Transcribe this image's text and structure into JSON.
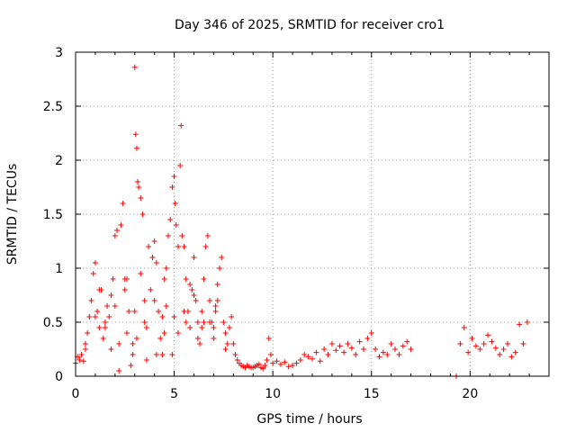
{
  "chart_data": {
    "type": "scatter",
    "title": "Day 346 of 2025, SRMTID for receiver cro1",
    "xlabel": "GPS time / hours",
    "ylabel": "SRMTID / TECUs",
    "xlim": [
      0,
      24
    ],
    "ylim": [
      0,
      3
    ],
    "xticks": [
      0,
      5,
      10,
      15,
      20
    ],
    "yticks": [
      0,
      0.5,
      1,
      1.5,
      2,
      2.5,
      3
    ],
    "xtick_labels": [
      "0",
      "5",
      "10",
      "15",
      "20"
    ],
    "ytick_labels": [
      "0",
      "0.5",
      "1",
      "1.5",
      "2",
      "2.5",
      "3"
    ],
    "grid": true,
    "marker": "plus",
    "series": [
      {
        "name": "SRMTID",
        "color": "#ff0000",
        "x": [
          0.0,
          0.1,
          0.2,
          0.3,
          0.4,
          0.5,
          0.6,
          0.7,
          0.8,
          0.9,
          1.0,
          1.1,
          1.2,
          1.3,
          1.4,
          1.5,
          1.6,
          1.7,
          1.8,
          1.9,
          2.0,
          2.1,
          2.2,
          2.3,
          2.4,
          2.5,
          2.6,
          2.7,
          2.8,
          2.9,
          3.0,
          3.05,
          3.1,
          3.15,
          3.2,
          3.3,
          3.4,
          3.5,
          3.6,
          3.7,
          3.8,
          3.9,
          4.0,
          4.1,
          4.2,
          4.3,
          4.4,
          4.5,
          4.6,
          4.7,
          4.8,
          4.9,
          5.0,
          5.05,
          5.1,
          5.2,
          5.3,
          5.35,
          5.4,
          5.5,
          5.6,
          5.7,
          5.8,
          5.9,
          6.0,
          6.1,
          6.2,
          6.3,
          6.4,
          6.5,
          6.6,
          6.7,
          6.8,
          6.9,
          7.0,
          7.1,
          7.2,
          7.3,
          7.4,
          7.5,
          7.6,
          7.7,
          7.8,
          7.9,
          8.0,
          8.1,
          8.2,
          8.3,
          8.4,
          8.5,
          8.6,
          8.7,
          8.8,
          8.9,
          9.0,
          9.1,
          9.2,
          9.3,
          9.4,
          9.5,
          9.6,
          9.7,
          9.8,
          9.9,
          10.0,
          10.2,
          10.4,
          10.6,
          10.8,
          11.0,
          11.2,
          11.4,
          11.6,
          11.8,
          12.0,
          12.2,
          12.4,
          12.6,
          12.8,
          13.0,
          13.2,
          13.4,
          13.6,
          13.8,
          14.0,
          14.2,
          14.4,
          14.6,
          14.8,
          15.0,
          15.2,
          15.4,
          15.6,
          15.8,
          16.0,
          16.2,
          16.4,
          16.6,
          16.8,
          17.0,
          19.3,
          19.5,
          19.7,
          19.9,
          20.1,
          20.3,
          20.5,
          20.7,
          20.9,
          21.1,
          21.3,
          21.5,
          21.7,
          21.9,
          22.1,
          22.3,
          22.5,
          22.7,
          22.9,
          0.5,
          1.0,
          1.5,
          2.0,
          2.5,
          3.0,
          3.5,
          4.0,
          4.5,
          5.0,
          5.5,
          6.0,
          6.5,
          7.0,
          2.2,
          2.6,
          3.1,
          3.3,
          4.1,
          4.6,
          5.2,
          5.6,
          6.2,
          6.8,
          7.2,
          1.2,
          1.8,
          2.9,
          3.6,
          4.4,
          4.9,
          5.8,
          6.4,
          7.1,
          7.6
        ],
        "y": [
          0.12,
          0.18,
          0.15,
          0.2,
          0.14,
          0.25,
          0.4,
          0.55,
          0.7,
          0.95,
          1.05,
          0.6,
          0.45,
          0.8,
          0.35,
          0.5,
          0.65,
          0.55,
          0.75,
          0.9,
          1.3,
          1.35,
          0.05,
          1.4,
          1.6,
          0.9,
          0.4,
          0.6,
          0.1,
          0.2,
          2.86,
          2.24,
          2.11,
          1.8,
          1.75,
          1.65,
          1.5,
          0.7,
          0.45,
          1.2,
          0.8,
          1.1,
          1.25,
          1.05,
          0.6,
          0.35,
          0.2,
          0.9,
          1.0,
          1.3,
          1.45,
          1.75,
          1.85,
          1.6,
          1.4,
          1.2,
          1.95,
          2.32,
          1.3,
          1.2,
          0.9,
          0.6,
          0.45,
          0.8,
          1.1,
          0.7,
          0.5,
          0.3,
          0.6,
          0.9,
          1.2,
          1.3,
          0.7,
          0.5,
          0.35,
          0.6,
          0.85,
          1.0,
          1.1,
          0.5,
          0.4,
          0.3,
          0.45,
          0.55,
          0.3,
          0.2,
          0.15,
          0.12,
          0.1,
          0.09,
          0.08,
          0.1,
          0.09,
          0.08,
          0.08,
          0.09,
          0.1,
          0.11,
          0.08,
          0.07,
          0.1,
          0.15,
          0.35,
          0.2,
          0.12,
          0.14,
          0.11,
          0.13,
          0.09,
          0.1,
          0.12,
          0.15,
          0.2,
          0.18,
          0.16,
          0.22,
          0.14,
          0.25,
          0.2,
          0.3,
          0.24,
          0.28,
          0.22,
          0.3,
          0.26,
          0.2,
          0.32,
          0.25,
          0.35,
          0.4,
          0.25,
          0.18,
          0.22,
          0.2,
          0.3,
          0.25,
          0.2,
          0.28,
          0.32,
          0.25,
          0.0,
          0.3,
          0.45,
          0.22,
          0.35,
          0.28,
          0.25,
          0.3,
          0.38,
          0.32,
          0.26,
          0.2,
          0.25,
          0.3,
          0.18,
          0.22,
          0.48,
          0.3,
          0.5,
          0.3,
          0.55,
          0.45,
          0.65,
          0.8,
          0.6,
          0.5,
          0.7,
          0.4,
          0.55,
          0.6,
          0.75,
          0.5,
          0.45,
          0.3,
          0.9,
          0.35,
          0.95,
          0.2,
          0.65,
          0.4,
          0.5,
          0.35,
          0.5,
          0.7,
          0.8,
          0.25,
          0.3,
          0.15,
          0.55,
          0.2,
          0.85,
          0.45,
          0.65,
          0.25
        ]
      }
    ]
  }
}
